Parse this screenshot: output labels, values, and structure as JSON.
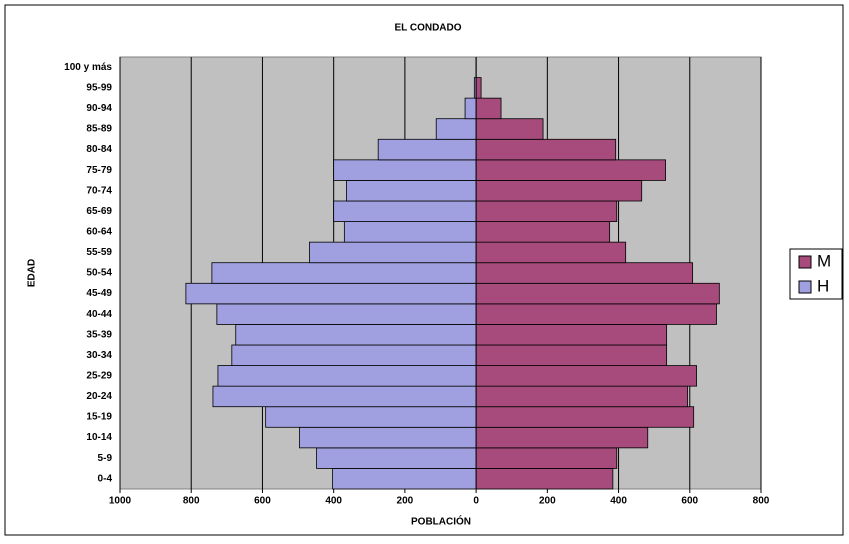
{
  "chart_data": {
    "type": "pyramid",
    "title": "EL CONDADO",
    "xlabel": "POBLACIÓN",
    "ylabel": "EDAD",
    "categories": [
      "0-4",
      "5-9",
      "10-14",
      "15-19",
      "20-24",
      "25-29",
      "30-34",
      "35-39",
      "40-44",
      "45-49",
      "50-54",
      "55-59",
      "60-64",
      "65-69",
      "70-74",
      "75-79",
      "80-84",
      "85-89",
      "90-94",
      "95-99",
      "100 y más"
    ],
    "series": [
      {
        "name": "M",
        "color": "#a64b7c",
        "values": [
          384,
          395,
          482,
          611,
          594,
          619,
          535,
          535,
          675,
          683,
          608,
          420,
          375,
          395,
          465,
          532,
          392,
          188,
          70,
          14,
          0
        ]
      },
      {
        "name": "H",
        "color": "#a0a0e0",
        "values": [
          -403,
          -448,
          -496,
          -591,
          -739,
          -725,
          -686,
          -675,
          -728,
          -815,
          -742,
          -468,
          -370,
          -400,
          -364,
          -400,
          -275,
          -112,
          -31,
          -5,
          0
        ]
      }
    ],
    "xlim": [
      -1000,
      800
    ],
    "xticks": [
      {
        "value": -1000,
        "label": "1000"
      },
      {
        "value": -800,
        "label": "800"
      },
      {
        "value": -600,
        "label": "600"
      },
      {
        "value": -400,
        "label": "400"
      },
      {
        "value": -200,
        "label": "200"
      },
      0,
      200,
      400,
      600,
      800
    ],
    "grid": true,
    "legend": "right"
  }
}
